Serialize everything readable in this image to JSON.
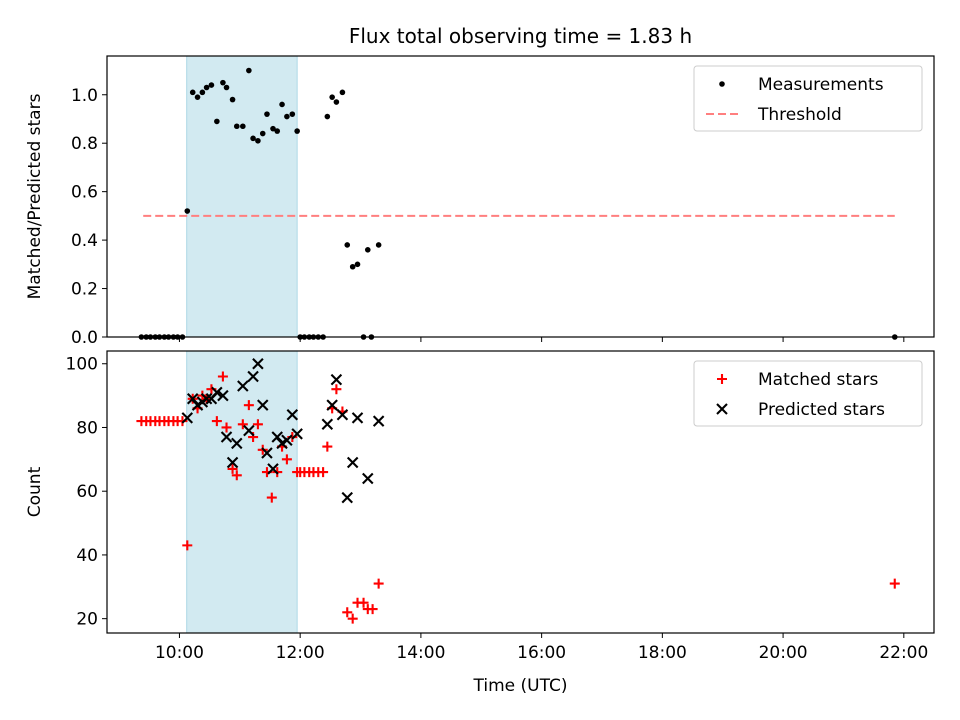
{
  "chart_data": [
    {
      "type": "scatter",
      "title": "Flux total observing time = 1.83 h",
      "xlabel": "",
      "ylabel": "Matched/Predicted stars",
      "xlim": [
        8.8,
        22.5
      ],
      "ylim": [
        0,
        1.16
      ],
      "yticks": [
        0.0,
        0.2,
        0.4,
        0.6,
        0.8,
        1.0
      ],
      "ytick_labels": [
        "0.0",
        "0.2",
        "0.4",
        "0.6",
        "0.8",
        "1.0"
      ],
      "highlight_span": [
        10.12,
        11.95
      ],
      "highlight_color": "#add8e6",
      "legend_position": "upper right",
      "series": [
        {
          "name": "Measurements",
          "marker": "dot",
          "color": "#000000",
          "points": [
            [
              9.37,
              0.0
            ],
            [
              9.45,
              0.0
            ],
            [
              9.52,
              0.0
            ],
            [
              9.6,
              0.0
            ],
            [
              9.67,
              0.0
            ],
            [
              9.75,
              0.0
            ],
            [
              9.82,
              0.0
            ],
            [
              9.9,
              0.0
            ],
            [
              9.97,
              0.0
            ],
            [
              10.05,
              0.0
            ],
            [
              10.13,
              0.52
            ],
            [
              10.22,
              1.01
            ],
            [
              10.3,
              0.99
            ],
            [
              10.38,
              1.01
            ],
            [
              10.45,
              1.03
            ],
            [
              10.53,
              1.04
            ],
            [
              10.62,
              0.89
            ],
            [
              10.72,
              1.05
            ],
            [
              10.78,
              1.03
            ],
            [
              10.88,
              0.98
            ],
            [
              10.95,
              0.87
            ],
            [
              11.05,
              0.87
            ],
            [
              11.15,
              1.1
            ],
            [
              11.22,
              0.82
            ],
            [
              11.3,
              0.81
            ],
            [
              11.38,
              0.84
            ],
            [
              11.45,
              0.92
            ],
            [
              11.55,
              0.86
            ],
            [
              11.62,
              0.85
            ],
            [
              11.7,
              0.96
            ],
            [
              11.78,
              0.91
            ],
            [
              11.87,
              0.92
            ],
            [
              11.95,
              0.85
            ],
            [
              12.0,
              0.0
            ],
            [
              12.07,
              0.0
            ],
            [
              12.15,
              0.0
            ],
            [
              12.22,
              0.0
            ],
            [
              12.3,
              0.0
            ],
            [
              12.38,
              0.0
            ],
            [
              12.45,
              0.91
            ],
            [
              12.53,
              0.99
            ],
            [
              12.6,
              0.97
            ],
            [
              12.7,
              1.01
            ],
            [
              12.78,
              0.38
            ],
            [
              12.87,
              0.29
            ],
            [
              12.95,
              0.3
            ],
            [
              13.05,
              0.0
            ],
            [
              13.12,
              0.36
            ],
            [
              13.18,
              0.0
            ],
            [
              13.3,
              0.38
            ],
            [
              21.85,
              0.0
            ]
          ]
        },
        {
          "name": "Threshold",
          "marker": "dashed-line",
          "color": "#ff7f7f",
          "points": [
            [
              9.4,
              0.5
            ],
            [
              21.85,
              0.5
            ]
          ]
        }
      ]
    },
    {
      "type": "scatter",
      "title": "",
      "xlabel": "Time (UTC)",
      "ylabel": "Count",
      "xlim": [
        8.8,
        22.5
      ],
      "ylim": [
        15.5,
        104
      ],
      "xticks": [
        10,
        12,
        14,
        16,
        18,
        20,
        22
      ],
      "xtick_labels": [
        "10:00",
        "12:00",
        "14:00",
        "16:00",
        "18:00",
        "20:00",
        "22:00"
      ],
      "yticks": [
        20,
        40,
        60,
        80,
        100
      ],
      "ytick_labels": [
        "20",
        "40",
        "60",
        "80",
        "100"
      ],
      "highlight_span": [
        10.12,
        11.95
      ],
      "highlight_color": "#add8e6",
      "legend_position": "upper right",
      "series": [
        {
          "name": "Matched stars",
          "marker": "plus",
          "color": "#ff0000",
          "points": [
            [
              9.37,
              82
            ],
            [
              9.45,
              82
            ],
            [
              9.52,
              82
            ],
            [
              9.6,
              82
            ],
            [
              9.67,
              82
            ],
            [
              9.75,
              82
            ],
            [
              9.82,
              82
            ],
            [
              9.9,
              82
            ],
            [
              9.97,
              82
            ],
            [
              10.05,
              82
            ],
            [
              10.13,
              43
            ],
            [
              10.22,
              89
            ],
            [
              10.3,
              86
            ],
            [
              10.38,
              90
            ],
            [
              10.45,
              89
            ],
            [
              10.53,
              92
            ],
            [
              10.62,
              82
            ],
            [
              10.72,
              96
            ],
            [
              10.78,
              80
            ],
            [
              10.88,
              67
            ],
            [
              10.95,
              65
            ],
            [
              11.05,
              81
            ],
            [
              11.15,
              87
            ],
            [
              11.22,
              77
            ],
            [
              11.3,
              81
            ],
            [
              11.38,
              73
            ],
            [
              11.45,
              66
            ],
            [
              11.53,
              58
            ],
            [
              11.62,
              66
            ],
            [
              11.7,
              74
            ],
            [
              11.78,
              70
            ],
            [
              11.87,
              77
            ],
            [
              11.95,
              66
            ],
            [
              12.0,
              66
            ],
            [
              12.07,
              66
            ],
            [
              12.15,
              66
            ],
            [
              12.22,
              66
            ],
            [
              12.3,
              66
            ],
            [
              12.38,
              66
            ],
            [
              12.45,
              74
            ],
            [
              12.53,
              86
            ],
            [
              12.6,
              92
            ],
            [
              12.7,
              85
            ],
            [
              12.78,
              22
            ],
            [
              12.87,
              20
            ],
            [
              12.95,
              25
            ],
            [
              13.05,
              25
            ],
            [
              13.12,
              23
            ],
            [
              13.2,
              23
            ],
            [
              13.3,
              31
            ],
            [
              21.85,
              31
            ]
          ]
        },
        {
          "name": "Predicted stars",
          "marker": "x",
          "color": "#000000",
          "points": [
            [
              10.13,
              83
            ],
            [
              10.22,
              89
            ],
            [
              10.3,
              87
            ],
            [
              10.38,
              88
            ],
            [
              10.45,
              89
            ],
            [
              10.53,
              89
            ],
            [
              10.62,
              91
            ],
            [
              10.72,
              90
            ],
            [
              10.78,
              77
            ],
            [
              10.88,
              69
            ],
            [
              10.95,
              75
            ],
            [
              11.05,
              93
            ],
            [
              11.15,
              79
            ],
            [
              11.22,
              96
            ],
            [
              11.3,
              100
            ],
            [
              11.38,
              87
            ],
            [
              11.45,
              72
            ],
            [
              11.55,
              67
            ],
            [
              11.62,
              77
            ],
            [
              11.7,
              75
            ],
            [
              11.78,
              76
            ],
            [
              11.87,
              84
            ],
            [
              11.95,
              78
            ],
            [
              12.45,
              81
            ],
            [
              12.53,
              87
            ],
            [
              12.6,
              95
            ],
            [
              12.7,
              84
            ],
            [
              12.78,
              58
            ],
            [
              12.87,
              69
            ],
            [
              12.95,
              83
            ],
            [
              13.12,
              64
            ],
            [
              13.3,
              82
            ]
          ]
        }
      ]
    }
  ]
}
